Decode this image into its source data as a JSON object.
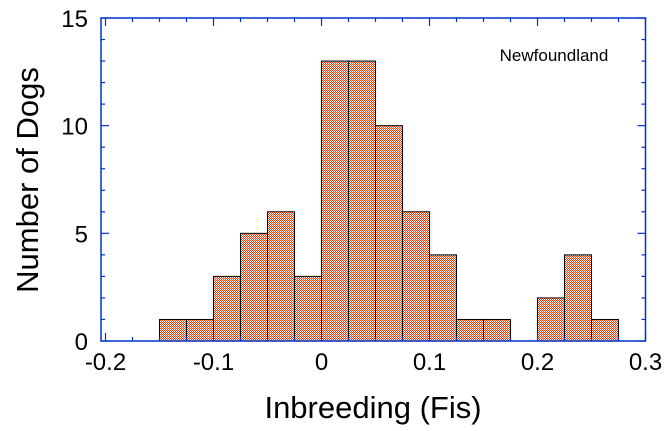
{
  "chart_data": {
    "type": "bar",
    "title": "",
    "annotation": "Newfoundland",
    "xlabel": "Inbreeding (Fis)",
    "ylabel": "Number of Dogs",
    "xlim": [
      -0.2,
      0.3
    ],
    "ylim": [
      0,
      15
    ],
    "xticks": [
      "-0.2",
      "-0.1",
      "0",
      "0.1",
      "0.2",
      "0.3"
    ],
    "yticks": [
      "0",
      "5",
      "10",
      "15"
    ],
    "bin_width": 0.025,
    "bin_starts": [
      -0.15,
      -0.125,
      -0.1,
      -0.075,
      -0.05,
      -0.025,
      0,
      0.025,
      0.05,
      0.075,
      0.1,
      0.125,
      0.15,
      0.175,
      0.2,
      0.225,
      0.25
    ],
    "values": [
      1,
      1,
      3,
      5,
      6,
      3,
      13,
      13,
      10,
      6,
      4,
      1,
      1,
      0,
      2,
      4,
      1
    ],
    "grid": false,
    "colors": {
      "bar": "#ff3300",
      "axis": "#0033cc"
    }
  }
}
